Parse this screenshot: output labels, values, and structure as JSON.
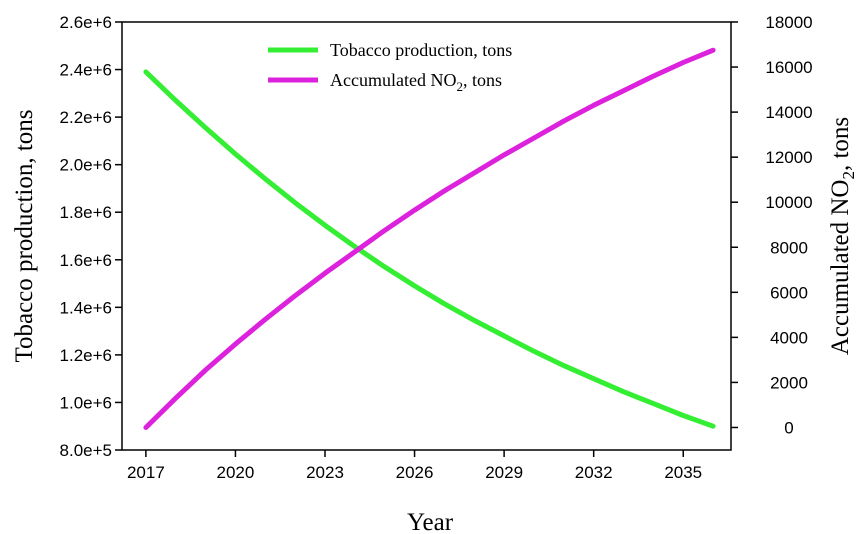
{
  "chart_data": {
    "type": "line",
    "title": "",
    "xlabel": "Year",
    "ylabel_left": "Tobacco production, tons",
    "ylabel_right_prefix": "Accumulated NO",
    "ylabel_right_sub": "2",
    "ylabel_right_suffix": ", tons",
    "xlim": [
      2016.2,
      2036.6
    ],
    "x_ticks": [
      2017,
      2020,
      2023,
      2026,
      2029,
      2032,
      2035
    ],
    "ylim_left": [
      800000,
      2600000
    ],
    "y_ticks_left": [
      "8.0e+5",
      "1.0e+6",
      "1.2e+6",
      "1.4e+6",
      "1.6e+6",
      "1.8e+6",
      "2.0e+6",
      "2.2e+6",
      "2.4e+6",
      "2.6e+6"
    ],
    "y_tick_values_left": [
      800000,
      1000000,
      1200000,
      1400000,
      1600000,
      1800000,
      2000000,
      2200000,
      2400000,
      2600000
    ],
    "ylim_right": [
      -1000,
      18000
    ],
    "y_ticks_right": [
      0,
      2000,
      4000,
      6000,
      8000,
      10000,
      12000,
      14000,
      16000,
      18000
    ],
    "legend_position": "top-center",
    "series": [
      {
        "name": "Tobacco production, tons",
        "axis": "left",
        "color": "#33ee33",
        "x": [
          2017,
          2018,
          2019,
          2020,
          2021,
          2022,
          2023,
          2024,
          2025,
          2026,
          2027,
          2028,
          2029,
          2030,
          2031,
          2032,
          2033,
          2034,
          2035,
          2036
        ],
        "values": [
          2390000,
          2270000,
          2155000,
          2045000,
          1940000,
          1840000,
          1745000,
          1655000,
          1570000,
          1490000,
          1415000,
          1345000,
          1280000,
          1215000,
          1155000,
          1100000,
          1045000,
          995000,
          945000,
          900000
        ]
      },
      {
        "name_prefix": "Accumulated NO",
        "name_sub": "2",
        "name_suffix": ", tons",
        "axis": "right",
        "color": "#dd22dd",
        "x": [
          2017,
          2018,
          2019,
          2020,
          2021,
          2022,
          2023,
          2024,
          2025,
          2026,
          2027,
          2028,
          2029,
          2030,
          2031,
          2032,
          2033,
          2034,
          2035,
          2036
        ],
        "values": [
          0,
          1300,
          2550,
          3700,
          4800,
          5850,
          6850,
          7800,
          8750,
          9650,
          10500,
          11300,
          12100,
          12850,
          13600,
          14300,
          14950,
          15600,
          16200,
          16750
        ]
      }
    ]
  }
}
